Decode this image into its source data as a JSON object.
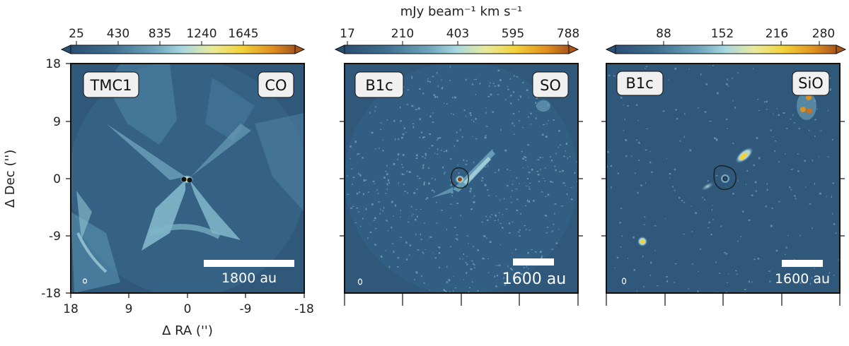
{
  "figure": {
    "colorbar_unit_label": "mJy beam⁻¹ km s⁻¹",
    "y_axis_label": "Δ Dec ('')",
    "x_axis_label": "Δ RA ('')",
    "y_ticks": [
      "18",
      "9",
      "0",
      "-9",
      "-18"
    ],
    "x_ticks": [
      "18",
      "9",
      "0",
      "-9",
      "-18"
    ],
    "colors": {
      "map_background": "#2f587a",
      "colormap": [
        "#2b4f74",
        "#3d6d8f",
        "#6fa6bd",
        "#a9d8e0",
        "#e9ea9a",
        "#f3d23a",
        "#e0901f",
        "#a8561a"
      ]
    },
    "panels": [
      {
        "source": "TMC1",
        "line": "CO",
        "colorbar_ticks": [
          "25",
          "430",
          "835",
          "1240",
          "1645"
        ],
        "scale_bar_label": "1800 au"
      },
      {
        "source": "B1c",
        "line": "SO",
        "colorbar_ticks": [
          "17",
          "210",
          "403",
          "595",
          "788"
        ],
        "scale_bar_label": "1600 au"
      },
      {
        "source": "B1c",
        "line": "SiO",
        "colorbar_ticks": [
          "88",
          "152",
          "216",
          "280"
        ],
        "scale_bar_label": "1600 au"
      }
    ]
  }
}
